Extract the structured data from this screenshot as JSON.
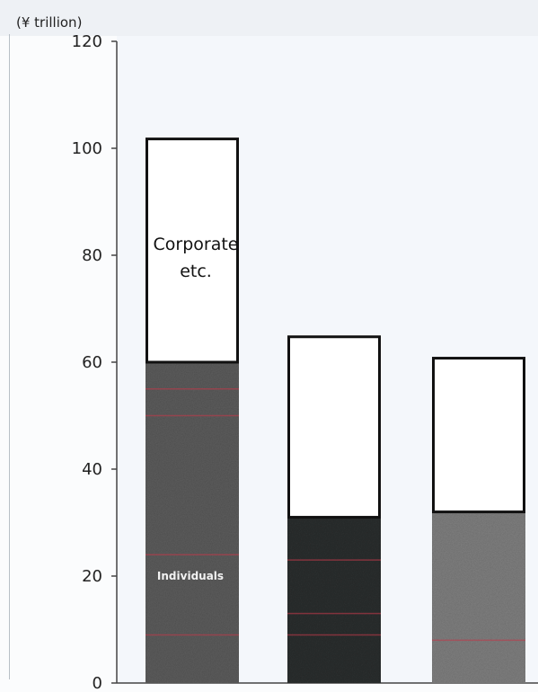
{
  "chart_data": {
    "type": "bar",
    "stacked": true,
    "ylabel": "(¥ trillion)",
    "ylim": [
      0,
      120
    ],
    "yticks": [
      0,
      20,
      40,
      60,
      80,
      100,
      120
    ],
    "categories": [
      "",
      "",
      ""
    ],
    "series": [
      {
        "name": "Individuals",
        "values": [
          60,
          31,
          32
        ],
        "colors": [
          "#5f5f5f",
          "#2f3133",
          "#828282"
        ]
      },
      {
        "name": "Corporate etc.",
        "values": [
          42,
          34,
          29
        ],
        "colors": [
          "#ffffff",
          "#ffffff",
          "#ffffff"
        ]
      }
    ],
    "annotations": {
      "corporate_line1": "Corporate",
      "corporate_line2": "etc.",
      "individuals": "Individuals"
    },
    "grid": false,
    "colors": {
      "bar_outline": "#111111",
      "axis": "#444444",
      "stripe": "#c0394a"
    }
  }
}
